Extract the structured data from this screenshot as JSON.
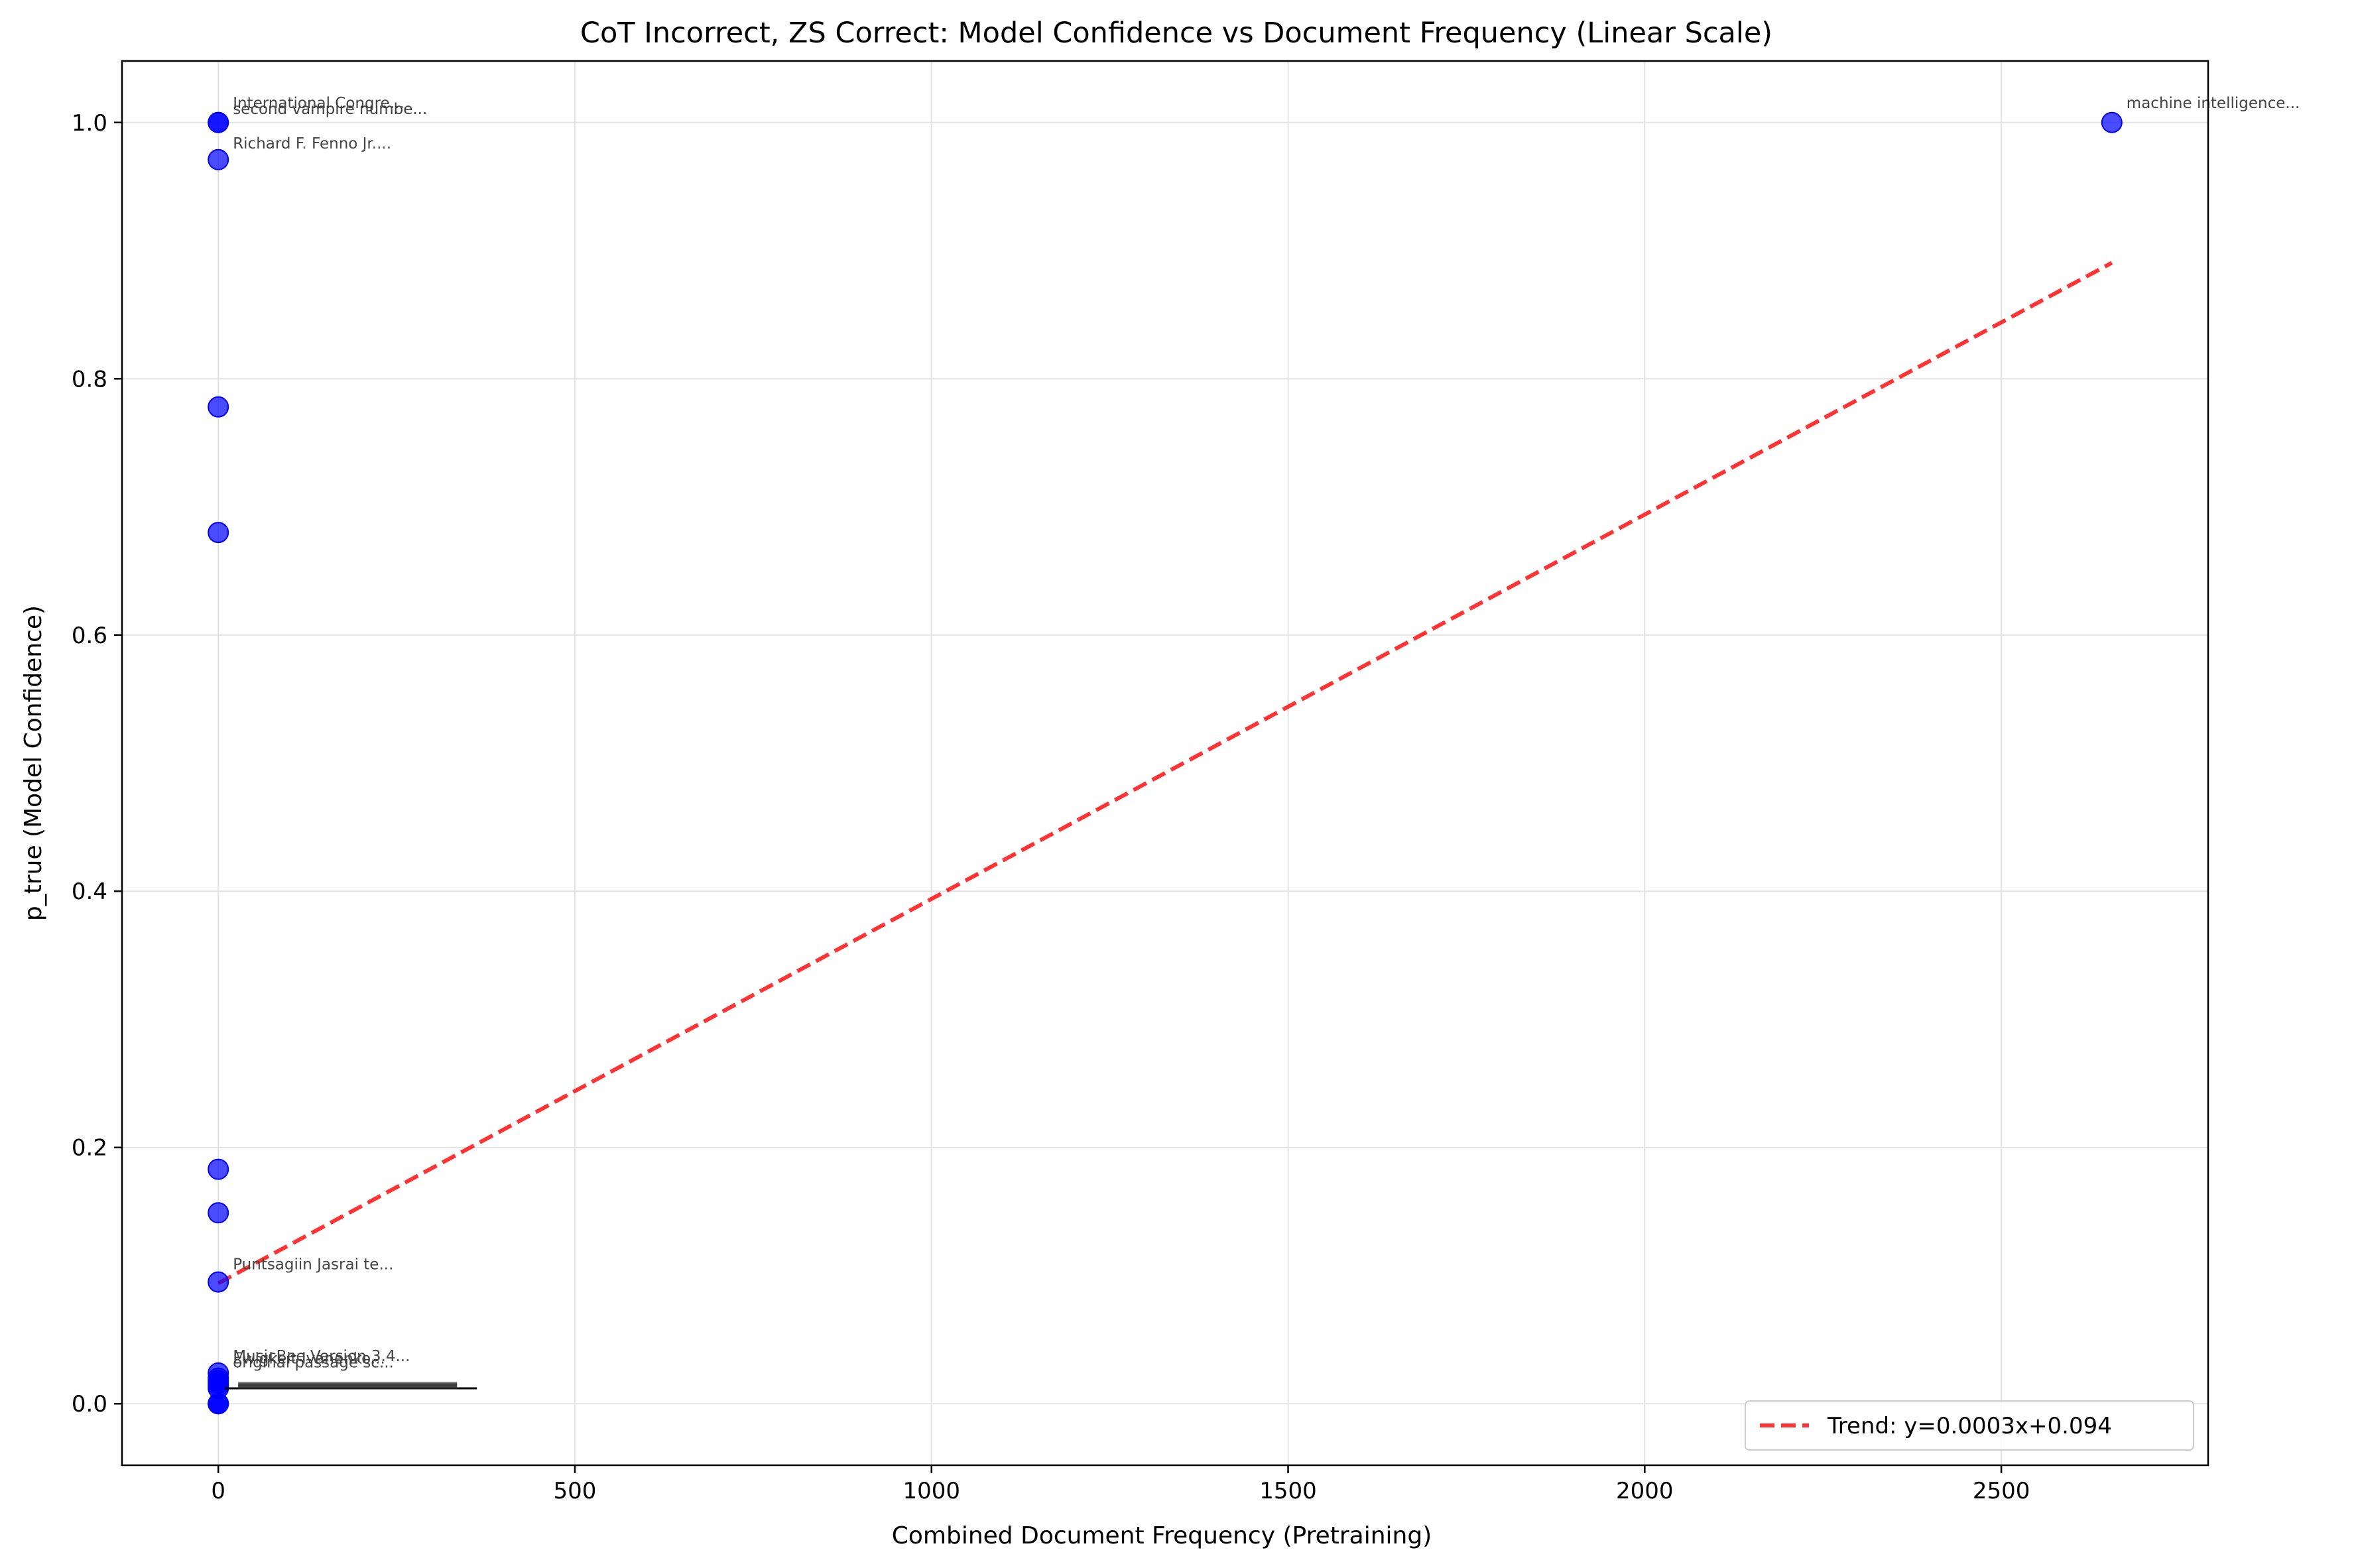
{
  "chart_data": {
    "type": "scatter",
    "title": "CoT Incorrect, ZS Correct: Model Confidence vs Document Frequency (Linear Scale)",
    "xlabel": "Combined Document Frequency (Pretraining)",
    "ylabel": "p_true (Model Confidence)",
    "xlim": [
      -135,
      2790
    ],
    "ylim": [
      -0.048,
      1.048
    ],
    "xticks": [
      0,
      500,
      1000,
      1500,
      2000,
      2500
    ],
    "yticks": [
      0.0,
      0.2,
      0.4,
      0.6,
      0.8,
      1.0
    ],
    "ytick_labels": [
      "0.0",
      "0.2",
      "0.4",
      "0.6",
      "0.8",
      "1.0"
    ],
    "grid": true,
    "point_color": "#0000ff",
    "trend_color": "#ff0000",
    "points": [
      {
        "x": 0,
        "y": 1.0
      },
      {
        "x": 0,
        "y": 1.0
      },
      {
        "x": 0,
        "y": 0.971
      },
      {
        "x": 0,
        "y": 0.778
      },
      {
        "x": 0,
        "y": 0.68
      },
      {
        "x": 0,
        "y": 0.183
      },
      {
        "x": 0,
        "y": 0.149
      },
      {
        "x": 0,
        "y": 0.095
      },
      {
        "x": 0,
        "y": 0.024
      },
      {
        "x": 0,
        "y": 0.02
      },
      {
        "x": 0,
        "y": 0.018
      },
      {
        "x": 0,
        "y": 0.016
      },
      {
        "x": 0,
        "y": 0.014
      },
      {
        "x": 0,
        "y": 0.012
      },
      {
        "x": 0,
        "y": 0.0
      },
      {
        "x": 0,
        "y": 0.0
      },
      {
        "x": 0,
        "y": 0.0
      },
      {
        "x": 2655,
        "y": 1.0
      }
    ],
    "annotations": [
      {
        "text": "International Congre...",
        "x": 0,
        "y": 1.0
      },
      {
        "text": "second vampire numbe...",
        "x": 0,
        "y": 1.0
      },
      {
        "text": "Richard F. Fenno Jr....",
        "x": 0,
        "y": 0.971
      },
      {
        "text": "Puntsagiin Jasrai te...",
        "x": 0,
        "y": 0.095
      },
      {
        "text": "MusicBee Version 3.4...",
        "x": 0,
        "y": 0.024
      },
      {
        "text": "Ewigkeit Ivanenko...",
        "x": 0,
        "y": 0.02
      },
      {
        "text": "original passage sc...",
        "x": 0,
        "y": 0.018
      },
      {
        "text": "machine intelligence...",
        "x": 2655,
        "y": 1.0
      }
    ],
    "trend": {
      "slope": 0.0003,
      "intercept": 0.094,
      "x_range": [
        0,
        2655
      ]
    },
    "legend": {
      "label": "Trend: y=0.0003x+0.094",
      "position": "lower right"
    }
  }
}
